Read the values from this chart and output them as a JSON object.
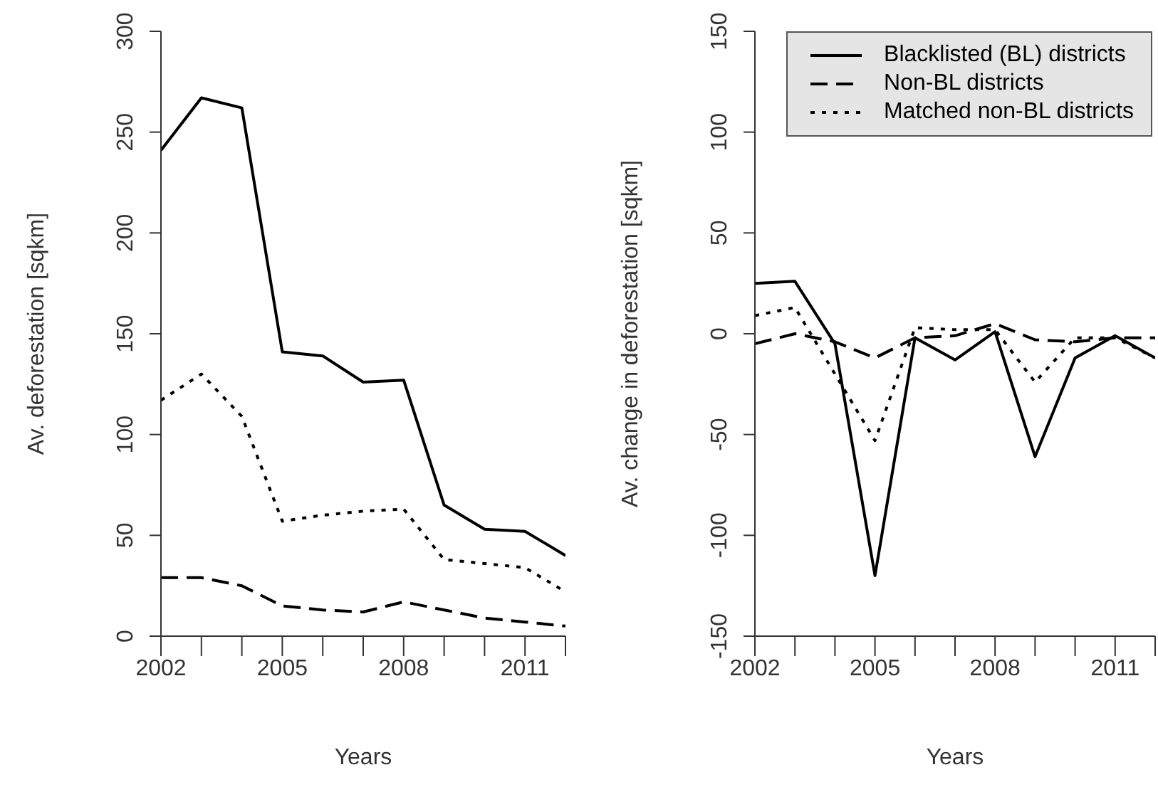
{
  "chart_data": [
    {
      "type": "line",
      "xlabel": "Years",
      "ylabel": "Av. deforestation [sqkm]",
      "x": [
        2002,
        2003,
        2004,
        2005,
        2006,
        2007,
        2008,
        2009,
        2010,
        2011,
        2012
      ],
      "series": [
        {
          "color": "#000000",
          "line_style": "solid",
          "values": [
            241,
            267,
            262,
            141,
            139,
            126,
            127,
            65,
            53,
            52,
            40
          ]
        },
        {
          "color": "#000000",
          "line_style": "dashed",
          "values": [
            29,
            29,
            25,
            15,
            13,
            12,
            17,
            13,
            9,
            7,
            5
          ]
        },
        {
          "color": "#000000",
          "line_style": "dotted",
          "values": [
            117,
            130,
            109,
            57,
            60,
            62,
            63,
            38,
            36,
            34,
            22
          ]
        }
      ],
      "xlim": [
        2002,
        2012
      ],
      "ylim": [
        0,
        300
      ],
      "xticks": [
        2002,
        {
          "value": 2003,
          "label": null
        },
        {
          "value": 2004,
          "label": null
        },
        2005,
        {
          "value": 2006,
          "label": null
        },
        {
          "value": 2007,
          "label": null
        },
        2008,
        {
          "value": 2009,
          "label": null
        },
        {
          "value": 2010,
          "label": null
        },
        2011,
        {
          "value": 2012,
          "label": null
        }
      ],
      "yticks": [
        0,
        50,
        100,
        150,
        200,
        250,
        300
      ],
      "grid": false,
      "legend": false,
      "marker": "none"
    },
    {
      "type": "line",
      "xlabel": "Years",
      "ylabel": "Av. change in deforestation [sqkm]",
      "x": [
        2002,
        2003,
        2004,
        2005,
        2006,
        2007,
        2008,
        2009,
        2010,
        2011,
        2012
      ],
      "series": [
        {
          "name": "Blacklisted (BL) districts",
          "color": "#000000",
          "line_style": "solid",
          "values": [
            25,
            26,
            -5,
            -120,
            -2,
            -13,
            1,
            -61,
            -12,
            -1,
            -12
          ]
        },
        {
          "name": "Non-BL districts",
          "color": "#000000",
          "line_style": "dashed",
          "values": [
            -5,
            0,
            -4,
            -12,
            -2,
            -1,
            5,
            -3,
            -4,
            -2,
            -2
          ]
        },
        {
          "name": "Matched non-BL districts",
          "color": "#000000",
          "line_style": "dotted",
          "values": [
            9,
            13,
            -20,
            -53,
            3,
            2,
            2,
            -24,
            -2,
            -2,
            -12
          ]
        }
      ],
      "xlim": [
        2002,
        2012
      ],
      "ylim": [
        -150,
        150
      ],
      "xticks": [
        2002,
        {
          "value": 2003,
          "label": null
        },
        {
          "value": 2004,
          "label": null
        },
        2005,
        {
          "value": 2006,
          "label": null
        },
        {
          "value": 2007,
          "label": null
        },
        2008,
        {
          "value": 2009,
          "label": null
        },
        {
          "value": 2010,
          "label": null
        },
        2011,
        {
          "value": 2012,
          "label": null
        }
      ],
      "yticks": [
        -150,
        -100,
        -50,
        0,
        50,
        100,
        150
      ],
      "grid": false,
      "legend": "top right",
      "marker": "none"
    }
  ]
}
